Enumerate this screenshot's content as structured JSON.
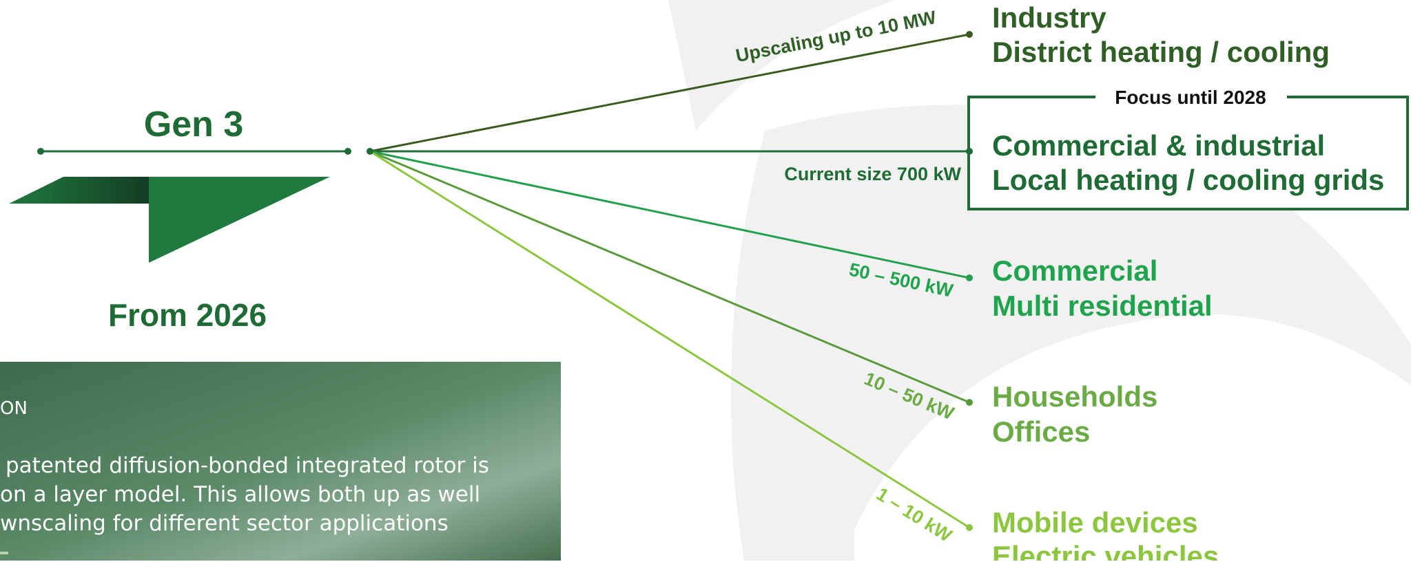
{
  "product": {
    "title": "Gen 3",
    "subtitle": "From 2026"
  },
  "panel": {
    "heading": "ON",
    "lines": [
      "patented diffusion-bonded integrated rotor is",
      "on a layer model. This allows both up as well",
      "wnscaling for different sector applications"
    ]
  },
  "branches": [
    {
      "label": "Upscaling up to 10 MW",
      "targets": [
        "Industry",
        "District heating / cooling"
      ]
    },
    {
      "label": "Current size 700 kW",
      "focus": "Focus until 2028",
      "targets": [
        "Commercial & industrial",
        "Local heating / cooling grids"
      ]
    },
    {
      "label": "50 – 500 kW",
      "targets": [
        "Commercial",
        "Multi residential"
      ]
    },
    {
      "label": "10 – 50 kW",
      "targets": [
        "Households",
        "Offices"
      ]
    },
    {
      "label": "1 – 10 kW",
      "targets": [
        "Mobile devices",
        "Electric vehicles"
      ]
    }
  ]
}
